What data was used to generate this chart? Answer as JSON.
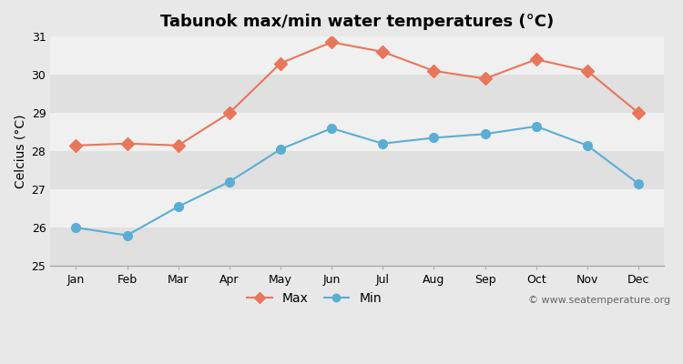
{
  "months": [
    "Jan",
    "Feb",
    "Mar",
    "Apr",
    "May",
    "Jun",
    "Jul",
    "Aug",
    "Sep",
    "Oct",
    "Nov",
    "Dec"
  ],
  "max_temps": [
    28.15,
    28.2,
    28.15,
    29.0,
    30.3,
    30.85,
    30.6,
    30.1,
    29.9,
    30.4,
    30.1,
    29.0
  ],
  "min_temps": [
    26.0,
    25.8,
    26.55,
    27.2,
    28.05,
    28.6,
    28.2,
    28.35,
    28.45,
    28.65,
    28.15,
    27.15
  ],
  "max_color": "#e8765a",
  "min_color": "#5aaed4",
  "bg_color": "#e8e8e8",
  "band_light": "#f0f0f0",
  "band_dark": "#e0e0e0",
  "title": "Tabunok max/min water temperatures (°C)",
  "ylabel": "Celcius (°C)",
  "ylim": [
    25,
    31
  ],
  "yticks": [
    25,
    26,
    27,
    28,
    29,
    30,
    31
  ],
  "watermark": "© www.seatemperature.org",
  "legend_max": "Max",
  "legend_min": "Min",
  "title_fontsize": 13,
  "label_fontsize": 10,
  "tick_fontsize": 9,
  "watermark_fontsize": 8
}
